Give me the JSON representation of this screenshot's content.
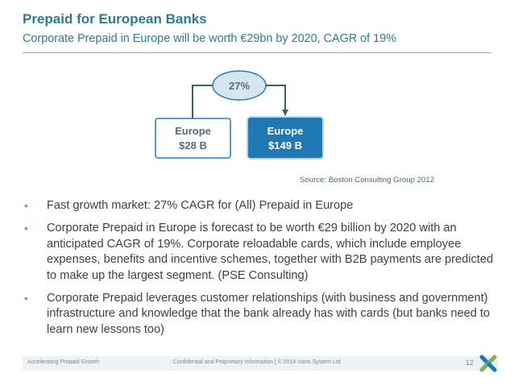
{
  "header": {
    "title": "Prepaid for European Banks",
    "subtitle": "Corporate Prepaid in Europe will be worth €29bn by 2020, CAGR of 19%"
  },
  "diagram": {
    "growth_label": "27%",
    "left_box": {
      "line1": "Europe",
      "line2": "$28 B"
    },
    "right_box": {
      "line1": "Europe",
      "line2": "$149 B"
    },
    "source": "Source: Boston Consulting Group 2012"
  },
  "bullets": {
    "dot": "•",
    "items": [
      "Fast growth market: 27% CAGR for (All) Prepaid in Europe",
      "Corporate Prepaid in Europe is forecast to be worth €29 billion by 2020 with an anticipated CAGR of 19%. Corporate reloadable cards, which include employee expenses, benefits and incentive schemes, together with B2B payments are predicted to make up the largest segment. (PSE Consulting)",
      "Corporate Prepaid leverages customer relationships (with business and government) infrastructure and knowledge that the bank already has with cards (but banks need to learn new lessons too)"
    ]
  },
  "footer": {
    "left": "Accelerating Prepaid Growth",
    "middle": "Confidential and Proprietary Information  |  © 2014 Ixaris System Ltd",
    "page": "12",
    "logo_icon": "ixaris-cross-logo"
  },
  "colors": {
    "title": "#2e7a93",
    "rule": "#9bc13c",
    "bubble_fill": "#d5e6f1",
    "box_left_fill": "#ffffff",
    "box_right_fill": "#1f77b4",
    "arrow": "#3a5f6e",
    "bullet": "#e0802a"
  }
}
